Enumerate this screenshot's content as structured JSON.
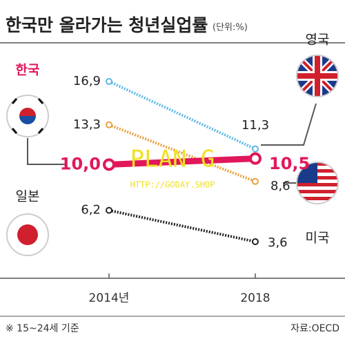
{
  "chart_data": {
    "type": "line",
    "title": "한국만 올라가는 청년실업률",
    "unit": "(단위:%)",
    "categories": [
      "2014년",
      "2018"
    ],
    "series": [
      {
        "name": "영국",
        "color": "#5bb8e8",
        "line_style": "dotted",
        "values": [
          16.9,
          11.3
        ],
        "value_labels": [
          "16,9",
          "11,3"
        ]
      },
      {
        "name": "미국",
        "color": "#e8a040",
        "line_style": "dotted",
        "values": [
          13.3,
          8.6
        ],
        "value_labels": [
          "13,3",
          "8,6"
        ]
      },
      {
        "name": "한국",
        "color": "#e0185a",
        "line_style": "solid",
        "values": [
          10.0,
          10.5
        ],
        "value_labels": [
          "10,0",
          "10,5"
        ]
      },
      {
        "name": "일본",
        "color": "#222222",
        "line_style": "dotted",
        "values": [
          6.2,
          3.6
        ],
        "value_labels": [
          "6,2",
          "3,6"
        ]
      }
    ],
    "note": "※ 15~24세 기준",
    "source": "자료:OECD",
    "watermark": {
      "title": "PLAN G",
      "url": "HTTP://GODAY.SHOP"
    }
  }
}
